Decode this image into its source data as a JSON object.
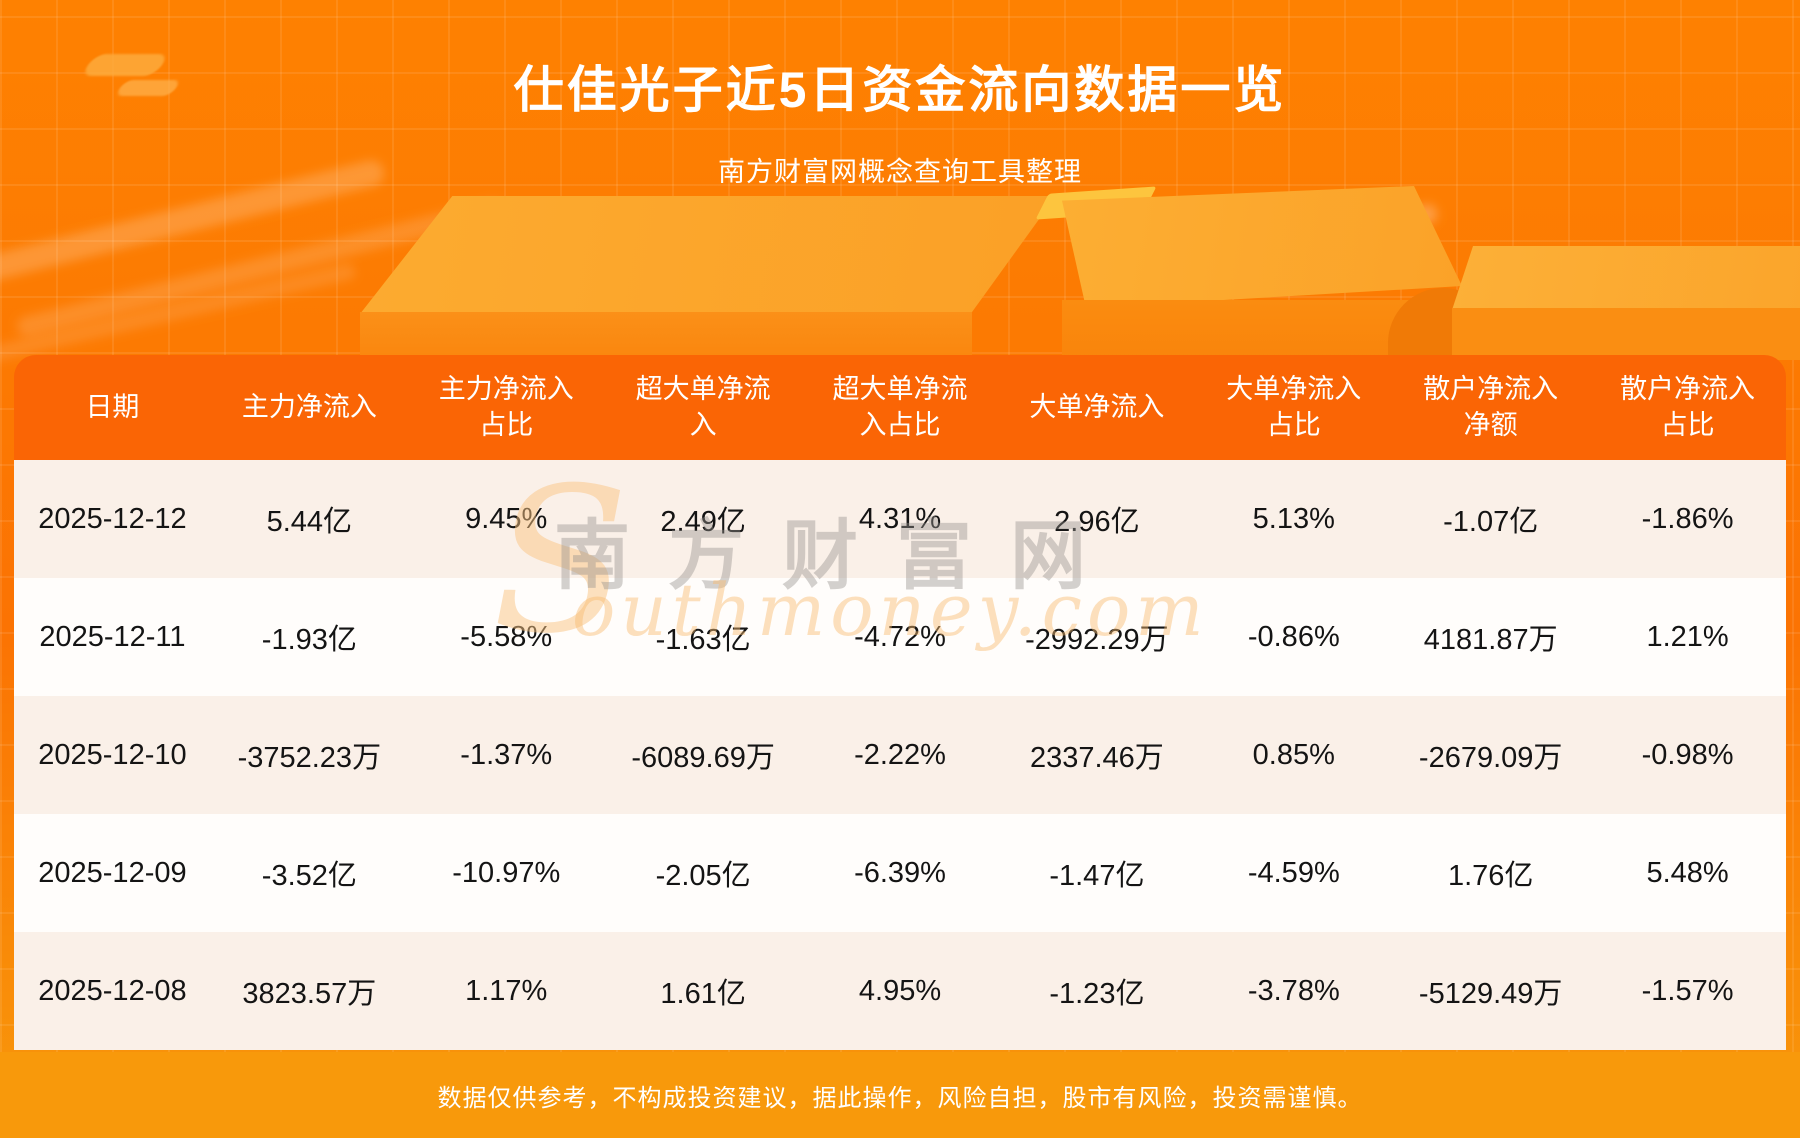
{
  "page": {
    "title": "仕佳光子近5日资金流向数据一览",
    "subtitle": "南方财富网概念查询工具整理",
    "disclaimer": "数据仅供参考，不构成投资建议，据此操作，风险自担，股市有风险，投资需谨慎。"
  },
  "watermark": {
    "initial": "S",
    "cn": "南方财富网",
    "en": "outhmoney.com"
  },
  "colors": {
    "background_top": "#fe8101",
    "background_bottom": "#f8980b",
    "table_header_bg": "#fa6505",
    "row_cream": "#faf0e8",
    "row_white": "#fffdfb",
    "footer_bg": "#f8990b",
    "title_text": "#ffffff",
    "body_text": "#141414"
  },
  "chart_data": {
    "type": "table",
    "title": "仕佳光子近5日资金流向数据一览",
    "columns": [
      "日期",
      "主力净流入",
      "主力净流入占比",
      "超大单净流入",
      "超大单净流入占比",
      "大单净流入",
      "大单净流入占比",
      "散户净流入净额",
      "散户净流入占比"
    ],
    "rows": [
      [
        "2025-12-12",
        "5.44亿",
        "9.45%",
        "2.49亿",
        "4.31%",
        "2.96亿",
        "5.13%",
        "-1.07亿",
        "-1.86%"
      ],
      [
        "2025-12-11",
        "-1.93亿",
        "-5.58%",
        "-1.63亿",
        "-4.72%",
        "-2992.29万",
        "-0.86%",
        "4181.87万",
        "1.21%"
      ],
      [
        "2025-12-10",
        "-3752.23万",
        "-1.37%",
        "-6089.69万",
        "-2.22%",
        "2337.46万",
        "0.85%",
        "-2679.09万",
        "-0.98%"
      ],
      [
        "2025-12-09",
        "-3.52亿",
        "-10.97%",
        "-2.05亿",
        "-6.39%",
        "-1.47亿",
        "-4.59%",
        "1.76亿",
        "5.48%"
      ],
      [
        "2025-12-08",
        "3823.57万",
        "1.17%",
        "1.61亿",
        "4.95%",
        "-1.23亿",
        "-3.78%",
        "-5129.49万",
        "-1.57%"
      ]
    ]
  }
}
